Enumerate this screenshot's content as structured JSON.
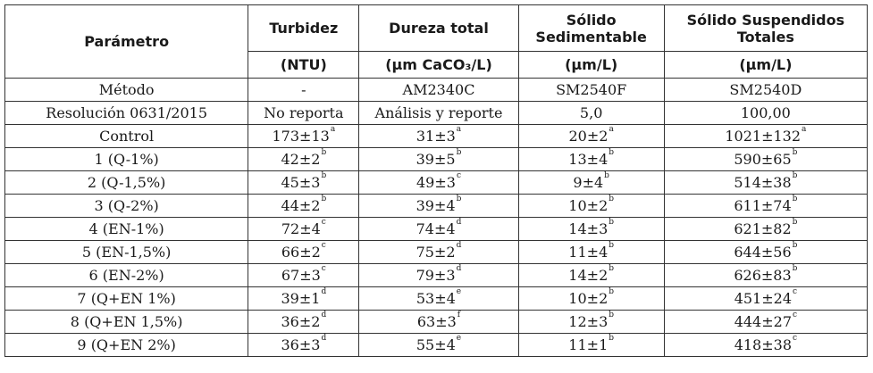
{
  "header": {
    "param": "Parámetro",
    "columns": [
      {
        "name": "Turbidez",
        "unit": "(NTU)"
      },
      {
        "name": "Dureza total",
        "unit": "(μm CaCO₃/L)"
      },
      {
        "name": "Sólido Sedimentable",
        "unit": "(μm/L)"
      },
      {
        "name": "Sólido Suspendidos Totales",
        "unit": "(μm/L)"
      }
    ]
  },
  "info_rows": [
    {
      "label": "Método",
      "values": [
        "-",
        "AM2340C",
        "SM2540F",
        "SM2540D"
      ]
    },
    {
      "label": "Resolución 0631/2015",
      "values": [
        "No reporta",
        "Análisis y reporte",
        "5,0",
        "100,00"
      ]
    }
  ],
  "data_rows": [
    {
      "label": "Control",
      "cells": [
        {
          "v": "173±13",
          "s": "a"
        },
        {
          "v": "31±3",
          "s": "a"
        },
        {
          "v": "20±2",
          "s": "a"
        },
        {
          "v": "1021±132",
          "s": "a"
        }
      ]
    },
    {
      "label": "1 (Q-1%)",
      "cells": [
        {
          "v": "42±2",
          "s": "b"
        },
        {
          "v": "39±5",
          "s": "b"
        },
        {
          "v": "13±4",
          "s": "b"
        },
        {
          "v": "590±65",
          "s": "b"
        }
      ]
    },
    {
      "label": "2 (Q-1,5%)",
      "cells": [
        {
          "v": "45±3",
          "s": "b"
        },
        {
          "v": "49±3",
          "s": "c"
        },
        {
          "v": "9±4",
          "s": "b"
        },
        {
          "v": "514±38",
          "s": "b"
        }
      ]
    },
    {
      "label": "3 (Q-2%)",
      "cells": [
        {
          "v": "44±2",
          "s": "b"
        },
        {
          "v": "39±4",
          "s": "b"
        },
        {
          "v": "10±2",
          "s": "b"
        },
        {
          "v": "611±74",
          "s": "b"
        }
      ]
    },
    {
      "label": "4 (EN-1%)",
      "cells": [
        {
          "v": "72±4",
          "s": "c"
        },
        {
          "v": "74±4",
          "s": "d"
        },
        {
          "v": "14±3",
          "s": "b"
        },
        {
          "v": "621±82",
          "s": "b"
        }
      ]
    },
    {
      "label": "5 (EN-1,5%)",
      "cells": [
        {
          "v": "66±2",
          "s": "c"
        },
        {
          "v": "75±2",
          "s": "d"
        },
        {
          "v": "11±4",
          "s": "b"
        },
        {
          "v": "644±56",
          "s": "b"
        }
      ]
    },
    {
      "label": "6 (EN-2%)",
      "cells": [
        {
          "v": "67±3",
          "s": "c"
        },
        {
          "v": "79±3",
          "s": "d"
        },
        {
          "v": "14±2",
          "s": "b"
        },
        {
          "v": "626±83",
          "s": "b"
        }
      ]
    },
    {
      "label": "7 (Q+EN 1%)",
      "cells": [
        {
          "v": "39±1",
          "s": "d"
        },
        {
          "v": "53±4",
          "s": "e"
        },
        {
          "v": "10±2",
          "s": "b"
        },
        {
          "v": "451±24",
          "s": "c"
        }
      ]
    },
    {
      "label": "8 (Q+EN 1,5%)",
      "cells": [
        {
          "v": "36±2",
          "s": "d"
        },
        {
          "v": "63±3",
          "s": "f"
        },
        {
          "v": "12±3",
          "s": "b"
        },
        {
          "v": "444±27",
          "s": "c"
        }
      ]
    },
    {
      "label": "9 (Q+EN 2%)",
      "cells": [
        {
          "v": "36±3",
          "s": "d"
        },
        {
          "v": "55±4",
          "s": "e"
        },
        {
          "v": "11±1",
          "s": "b"
        },
        {
          "v": "418±38",
          "s": "c"
        }
      ]
    }
  ]
}
